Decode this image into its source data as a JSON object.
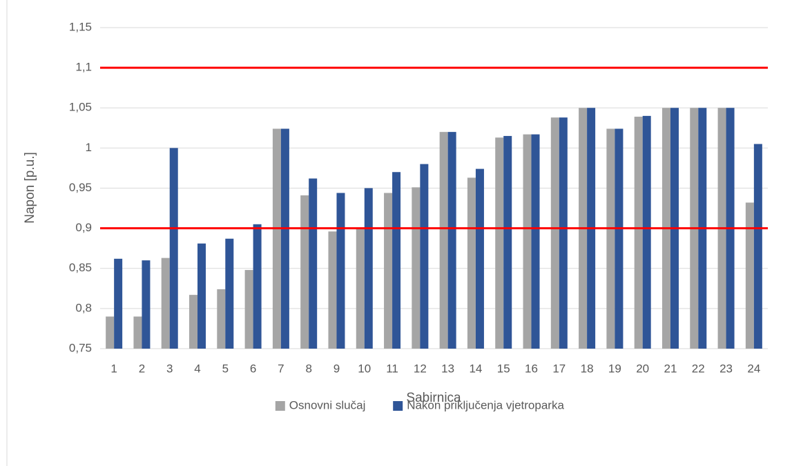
{
  "chart_data": {
    "type": "bar",
    "categories": [
      "1",
      "2",
      "3",
      "4",
      "5",
      "6",
      "7",
      "8",
      "9",
      "10",
      "11",
      "12",
      "13",
      "14",
      "15",
      "16",
      "17",
      "18",
      "19",
      "20",
      "21",
      "22",
      "23",
      "24"
    ],
    "series": [
      {
        "name": "Osnovni slučaj",
        "color": "#a5a5a5",
        "values": [
          0.79,
          0.79,
          0.863,
          0.817,
          0.824,
          0.848,
          1.024,
          0.941,
          0.896,
          0.9,
          0.944,
          0.951,
          1.02,
          0.963,
          1.013,
          1.017,
          1.038,
          1.05,
          1.024,
          1.039,
          1.05,
          1.05,
          1.05,
          0.932
        ]
      },
      {
        "name": "Nakon priključenja vjetroparka",
        "color": "#2f5597",
        "values": [
          0.862,
          0.86,
          1.0,
          0.881,
          0.887,
          0.905,
          1.024,
          0.962,
          0.944,
          0.95,
          0.97,
          0.98,
          1.02,
          0.974,
          1.015,
          1.017,
          1.038,
          1.05,
          1.024,
          1.04,
          1.05,
          1.05,
          1.05,
          1.005
        ]
      }
    ],
    "reference_lines": [
      1.1,
      0.9
    ],
    "reference_color": "#ff0000",
    "ylim": [
      0.75,
      1.15
    ],
    "yticks": [
      {
        "value": 0.75,
        "label": "0,75"
      },
      {
        "value": 0.8,
        "label": "0,8"
      },
      {
        "value": 0.85,
        "label": "0,85"
      },
      {
        "value": 0.9,
        "label": "0,9"
      },
      {
        "value": 0.95,
        "label": "0,95"
      },
      {
        "value": 1,
        "label": "1"
      },
      {
        "value": 1.05,
        "label": "1,05"
      },
      {
        "value": 1.1,
        "label": "1,1"
      },
      {
        "value": 1.15,
        "label": "1,15"
      }
    ],
    "grid": true,
    "legend": "bottom",
    "x_label": "Sabirnica",
    "y_label": "Napon [p.u.]"
  }
}
